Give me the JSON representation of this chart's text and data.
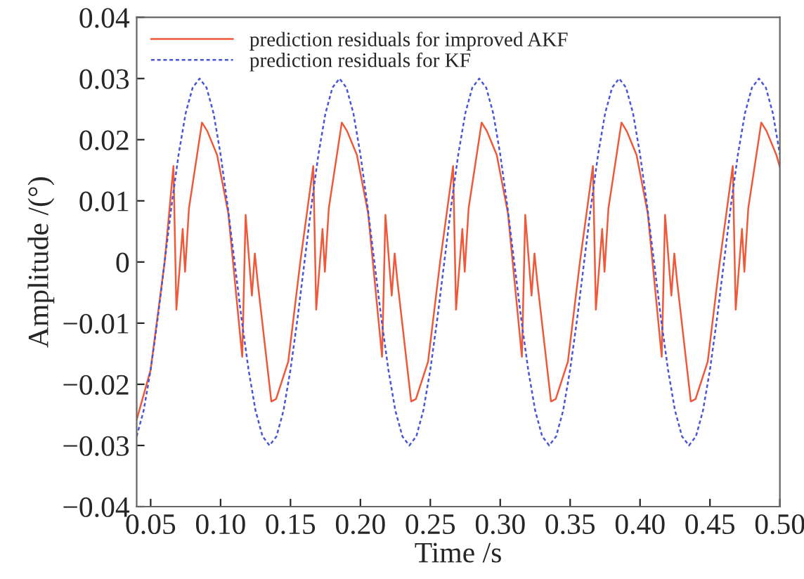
{
  "chart_data": {
    "type": "line",
    "xlabel": "Time /s",
    "ylabel": "Amplitude /(°)",
    "xlim": [
      0.04,
      0.5
    ],
    "ylim": [
      -0.04,
      0.04
    ],
    "xticks": [
      {
        "value": 0.05,
        "label": "0.05"
      },
      {
        "value": 0.1,
        "label": "0.10"
      },
      {
        "value": 0.15,
        "label": "0.15"
      },
      {
        "value": 0.2,
        "label": "0.20"
      },
      {
        "value": 0.25,
        "label": "0.25"
      },
      {
        "value": 0.3,
        "label": "0.30"
      },
      {
        "value": 0.35,
        "label": "0.35"
      },
      {
        "value": 0.4,
        "label": "0.40"
      },
      {
        "value": 0.45,
        "label": "0.45"
      },
      {
        "value": 0.5,
        "label": "0.50"
      }
    ],
    "yticks": [
      {
        "value": -0.04,
        "label": "−0.04"
      },
      {
        "value": -0.03,
        "label": "−0.03"
      },
      {
        "value": -0.02,
        "label": "−0.02"
      },
      {
        "value": -0.01,
        "label": "−0.01"
      },
      0,
      0.01,
      0.02,
      0.03,
      0.04
    ],
    "grid": false,
    "legend": "top left",
    "marker": "none",
    "series": [
      {
        "name": "prediction residuals for improved AKF",
        "color": "#f0583a",
        "line_style": "solid",
        "x": [
          0.04,
          0.05,
          0.06,
          0.0663,
          0.0684,
          0.0729,
          0.0746,
          0.0774,
          0.0867,
          0.0905,
          0.0975,
          0.1055,
          0.1155,
          0.1179,
          0.1224,
          0.1245,
          0.1265,
          0.1363,
          0.1397,
          0.1484,
          0.157,
          0.1663,
          0.1684,
          0.1729,
          0.1746,
          0.1774,
          0.1867,
          0.1905,
          0.1975,
          0.2055,
          0.2155,
          0.2179,
          0.2224,
          0.2245,
          0.2265,
          0.2363,
          0.2397,
          0.2484,
          0.257,
          0.2663,
          0.2684,
          0.2729,
          0.2746,
          0.2774,
          0.2867,
          0.2905,
          0.2975,
          0.3055,
          0.3155,
          0.3179,
          0.3224,
          0.3245,
          0.3265,
          0.3363,
          0.3397,
          0.3484,
          0.357,
          0.3663,
          0.3684,
          0.3729,
          0.3746,
          0.3774,
          0.3867,
          0.3905,
          0.3975,
          0.4055,
          0.4155,
          0.4179,
          0.4224,
          0.4245,
          0.4265,
          0.4363,
          0.4397,
          0.4484,
          0.457,
          0.4663,
          0.4684,
          0.4729,
          0.4746,
          0.4774,
          0.4867,
          0.4905,
          0.4975,
          0.5
        ],
        "values": [
          -0.0258,
          -0.0176,
          0.0,
          0.0157,
          -0.0078,
          0.0054,
          -0.0016,
          0.0088,
          0.0228,
          0.0214,
          0.0175,
          0.008,
          -0.0155,
          0.0077,
          -0.0055,
          0.0014,
          -0.0032,
          -0.0228,
          -0.0224,
          -0.0163,
          0.0,
          0.0157,
          -0.0078,
          0.0054,
          -0.0016,
          0.0088,
          0.0228,
          0.0214,
          0.0175,
          0.008,
          -0.0155,
          0.0077,
          -0.0055,
          0.0014,
          -0.0032,
          -0.0228,
          -0.0224,
          -0.0163,
          0.0,
          0.0157,
          -0.0078,
          0.0054,
          -0.0016,
          0.0088,
          0.0228,
          0.0214,
          0.0175,
          0.008,
          -0.0155,
          0.0077,
          -0.0055,
          0.0014,
          -0.0032,
          -0.0228,
          -0.0224,
          -0.0163,
          0.0,
          0.0157,
          -0.0078,
          0.0054,
          -0.0016,
          0.0088,
          0.0228,
          0.0214,
          0.0175,
          0.008,
          -0.0155,
          0.0077,
          -0.0055,
          0.0014,
          -0.0032,
          -0.0228,
          -0.0224,
          -0.0163,
          0.0,
          0.0157,
          -0.0078,
          0.0054,
          -0.0016,
          0.0088,
          0.0228,
          0.0214,
          0.0175,
          0.0155
        ]
      },
      {
        "name": "prediction residuals for KF",
        "color": "#4a55d8",
        "line_style": "dashed",
        "x": [
          0.04,
          0.045,
          0.05,
          0.055,
          0.06,
          0.065,
          0.07,
          0.075,
          0.08,
          0.085,
          0.09,
          0.095,
          0.1,
          0.105,
          0.11,
          0.115,
          0.12,
          0.125,
          0.13,
          0.135,
          0.14,
          0.145,
          0.15,
          0.155,
          0.16,
          0.165,
          0.17,
          0.175,
          0.18,
          0.185,
          0.19,
          0.195,
          0.2,
          0.205,
          0.21,
          0.215,
          0.22,
          0.225,
          0.23,
          0.235,
          0.24,
          0.245,
          0.25,
          0.255,
          0.26,
          0.265,
          0.27,
          0.275,
          0.28,
          0.285,
          0.29,
          0.295,
          0.3,
          0.305,
          0.31,
          0.315,
          0.32,
          0.325,
          0.33,
          0.335,
          0.34,
          0.345,
          0.35,
          0.355,
          0.36,
          0.365,
          0.37,
          0.375,
          0.38,
          0.385,
          0.39,
          0.395,
          0.4,
          0.405,
          0.41,
          0.415,
          0.42,
          0.425,
          0.43,
          0.435,
          0.44,
          0.445,
          0.45,
          0.455,
          0.46,
          0.465,
          0.47,
          0.475,
          0.48,
          0.485,
          0.49,
          0.495,
          0.5
        ],
        "values": [
          -0.0285,
          -0.0243,
          -0.0176,
          -0.0093,
          0,
          0.0093,
          0.0176,
          0.0243,
          0.0285,
          0.03,
          0.0285,
          0.0243,
          0.0176,
          0.0093,
          0,
          -0.0093,
          -0.0176,
          -0.0243,
          -0.0285,
          -0.03,
          -0.0285,
          -0.0243,
          -0.0176,
          -0.0093,
          0,
          0.0093,
          0.0176,
          0.0243,
          0.0285,
          0.03,
          0.0285,
          0.0243,
          0.0176,
          0.0093,
          0,
          -0.0093,
          -0.0176,
          -0.0243,
          -0.0285,
          -0.03,
          -0.0285,
          -0.0243,
          -0.0176,
          -0.0093,
          0,
          0.0093,
          0.0176,
          0.0243,
          0.0285,
          0.03,
          0.0285,
          0.0243,
          0.0176,
          0.0093,
          0,
          -0.0093,
          -0.0176,
          -0.0243,
          -0.0285,
          -0.03,
          -0.0285,
          -0.0243,
          -0.0176,
          -0.0093,
          0,
          0.0093,
          0.0176,
          0.0243,
          0.0285,
          0.03,
          0.0285,
          0.0243,
          0.0176,
          0.0093,
          0,
          -0.0093,
          -0.0176,
          -0.0243,
          -0.0285,
          -0.03,
          -0.0285,
          -0.0243,
          -0.0176,
          -0.0093,
          0,
          0.0093,
          0.0176,
          0.0243,
          0.0285,
          0.03,
          0.0285,
          0.0243,
          0.0176
        ]
      }
    ]
  }
}
